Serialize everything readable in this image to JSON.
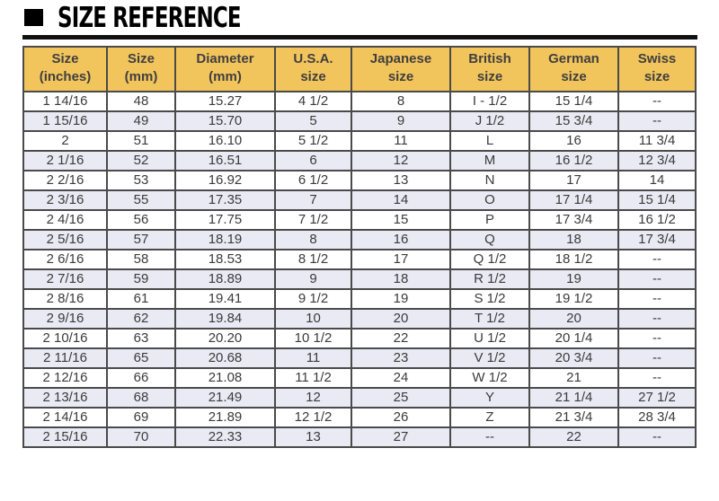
{
  "page": {
    "title": "SIZE REFERENCE"
  },
  "colors": {
    "header_bg": "#F2C45C",
    "header_text": "#3F3F3F",
    "body_text": "#3B3B3B",
    "row_alt_bg": "#E9EAF4",
    "border": "#4A4A4A",
    "title_color": "#000000"
  },
  "chart_data": {
    "type": "table",
    "title": "SIZE REFERENCE",
    "columns": [
      "Size\n(inches)",
      "Size\n(mm)",
      "Diameter\n(mm)",
      "U.S.A.\nsize",
      "Japanese\nsize",
      "British\nsize",
      "German\nsize",
      "Swiss\nsize"
    ],
    "rows": [
      [
        "1 14/16",
        "48",
        "15.27",
        "4 1/2",
        "8",
        "I - 1/2",
        "15 1/4",
        "--"
      ],
      [
        "1 15/16",
        "49",
        "15.70",
        "5",
        "9",
        "J 1/2",
        "15 3/4",
        "--"
      ],
      [
        "2",
        "51",
        "16.10",
        "5 1/2",
        "11",
        "L",
        "16",
        "11 3/4"
      ],
      [
        "2 1/16",
        "52",
        "16.51",
        "6",
        "12",
        "M",
        "16 1/2",
        "12 3/4"
      ],
      [
        "2 2/16",
        "53",
        "16.92",
        "6 1/2",
        "13",
        "N",
        "17",
        "14"
      ],
      [
        "2 3/16",
        "55",
        "17.35",
        "7",
        "14",
        "O",
        "17 1/4",
        "15 1/4"
      ],
      [
        "2 4/16",
        "56",
        "17.75",
        "7 1/2",
        "15",
        "P",
        "17 3/4",
        "16 1/2"
      ],
      [
        "2 5/16",
        "57",
        "18.19",
        "8",
        "16",
        "Q",
        "18",
        "17 3/4"
      ],
      [
        "2 6/16",
        "58",
        "18.53",
        "8 1/2",
        "17",
        "Q 1/2",
        "18 1/2",
        "--"
      ],
      [
        "2 7/16",
        "59",
        "18.89",
        "9",
        "18",
        "R 1/2",
        "19",
        "--"
      ],
      [
        "2 8/16",
        "61",
        "19.41",
        "9 1/2",
        "19",
        "S 1/2",
        "19 1/2",
        "--"
      ],
      [
        "2 9/16",
        "62",
        "19.84",
        "10",
        "20",
        "T 1/2",
        "20",
        "--"
      ],
      [
        "2 10/16",
        "63",
        "20.20",
        "10 1/2",
        "22",
        "U 1/2",
        "20 1/4",
        "--"
      ],
      [
        "2 11/16",
        "65",
        "20.68",
        "11",
        "23",
        "V 1/2",
        "20 3/4",
        "--"
      ],
      [
        "2 12/16",
        "66",
        "21.08",
        "11 1/2",
        "24",
        "W 1/2",
        "21",
        "--"
      ],
      [
        "2 13/16",
        "68",
        "21.49",
        "12",
        "25",
        "Y",
        "21 1/4",
        "27 1/2"
      ],
      [
        "2 14/16",
        "69",
        "21.89",
        "12 1/2",
        "26",
        "Z",
        "21 3/4",
        "28 3/4"
      ],
      [
        "2 15/16",
        "70",
        "22.33",
        "13",
        "27",
        "--",
        "22",
        "--"
      ]
    ]
  }
}
